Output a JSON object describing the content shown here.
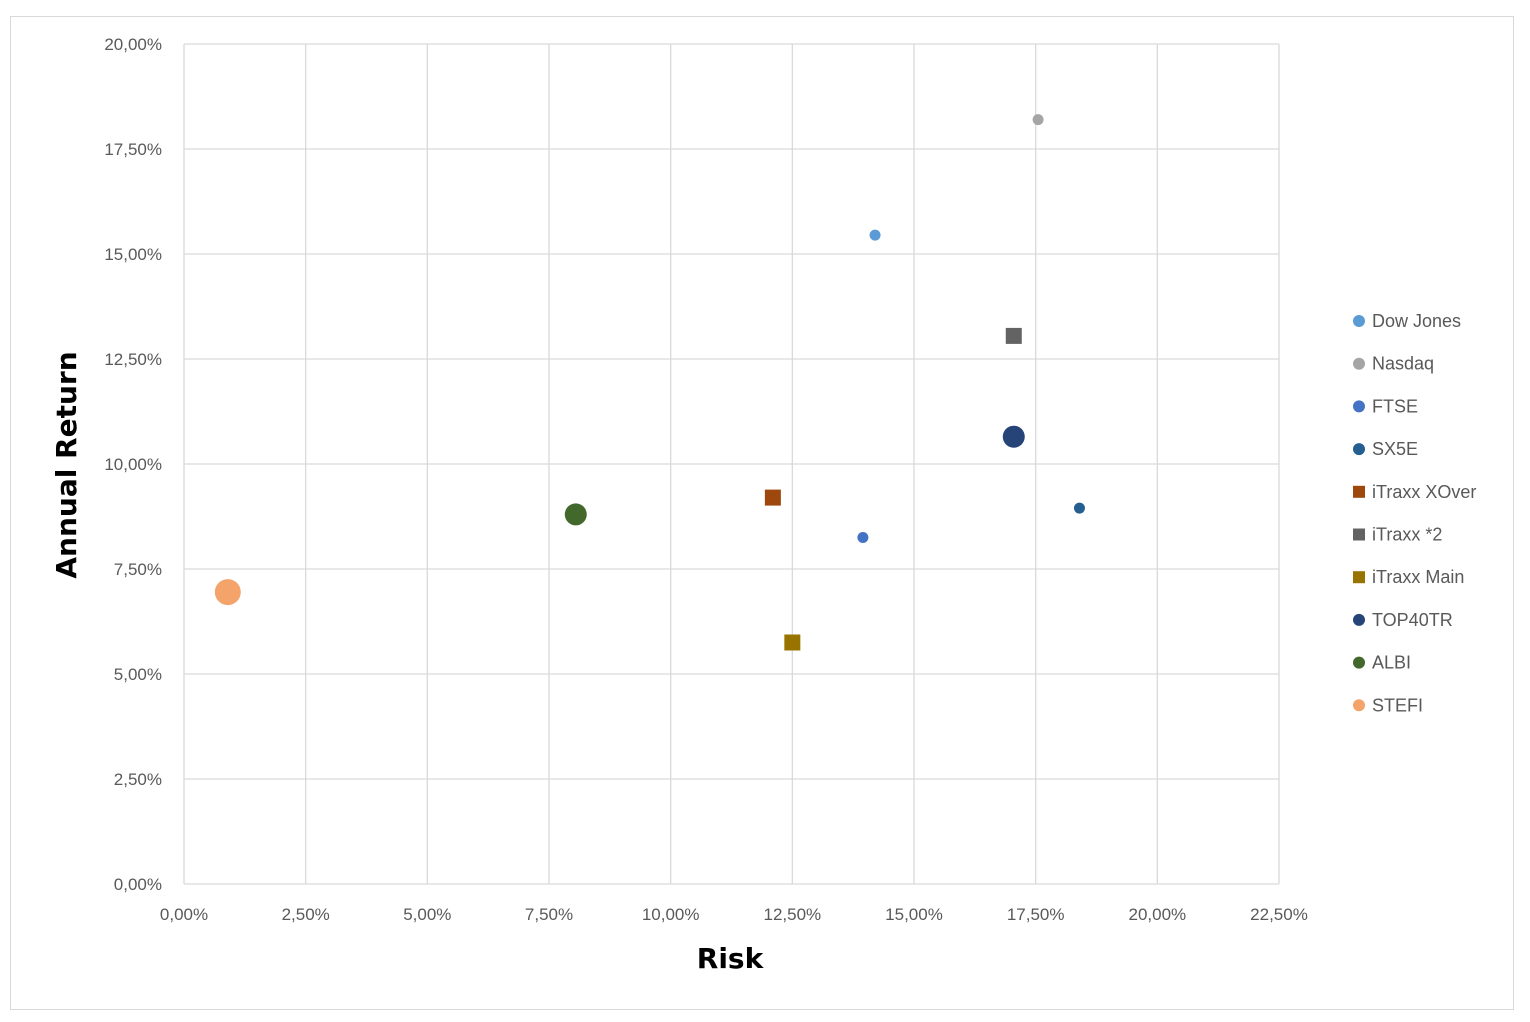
{
  "chart_data": {
    "type": "scatter",
    "title": "",
    "xlabel": "Risk",
    "ylabel": "Annual Return",
    "xlim": [
      0,
      22.5
    ],
    "ylim": [
      0,
      20
    ],
    "x_ticks": [
      "0,00%",
      "2,50%",
      "5,00%",
      "7,50%",
      "10,00%",
      "12,50%",
      "15,00%",
      "17,50%",
      "20,00%",
      "22,50%"
    ],
    "y_ticks": [
      "0,00%",
      "2,50%",
      "5,00%",
      "7,50%",
      "10,00%",
      "12,50%",
      "15,00%",
      "17,50%",
      "20,00%"
    ],
    "x_tick_values": [
      0,
      2.5,
      5,
      7.5,
      10,
      12.5,
      15,
      17.5,
      20,
      22.5
    ],
    "y_tick_values": [
      0,
      2.5,
      5,
      7.5,
      10,
      12.5,
      15,
      17.5,
      20
    ],
    "grid": true,
    "legend_position": "right",
    "series": [
      {
        "name": "Dow Jones",
        "x": 14.2,
        "y": 15.45,
        "marker": "circle",
        "color": "#5b9bd5",
        "size": "small"
      },
      {
        "name": "Nasdaq",
        "x": 17.55,
        "y": 18.2,
        "marker": "circle",
        "color": "#a5a5a5",
        "size": "small"
      },
      {
        "name": "FTSE",
        "x": 13.95,
        "y": 8.25,
        "marker": "circle",
        "color": "#4472c4",
        "size": "small"
      },
      {
        "name": "SX5E",
        "x": 18.4,
        "y": 8.95,
        "marker": "circle",
        "color": "#255e91",
        "size": "small"
      },
      {
        "name": "iTraxx XOver",
        "x": 12.1,
        "y": 9.2,
        "marker": "square",
        "color": "#9e480e",
        "size": "medium"
      },
      {
        "name": "iTraxx *2",
        "x": 17.05,
        "y": 13.05,
        "marker": "square",
        "color": "#636363",
        "size": "medium"
      },
      {
        "name": "iTraxx Main",
        "x": 12.5,
        "y": 5.75,
        "marker": "square",
        "color": "#997300",
        "size": "medium"
      },
      {
        "name": "TOP40TR",
        "x": 17.05,
        "y": 10.65,
        "marker": "circle",
        "color": "#264478",
        "size": "large"
      },
      {
        "name": "ALBI",
        "x": 8.05,
        "y": 8.8,
        "marker": "circle",
        "color": "#43682b",
        "size": "large"
      },
      {
        "name": "STEFI",
        "x": 0.9,
        "y": 6.95,
        "marker": "circle",
        "color": "#f4a46a",
        "size": "xlarge"
      }
    ]
  }
}
